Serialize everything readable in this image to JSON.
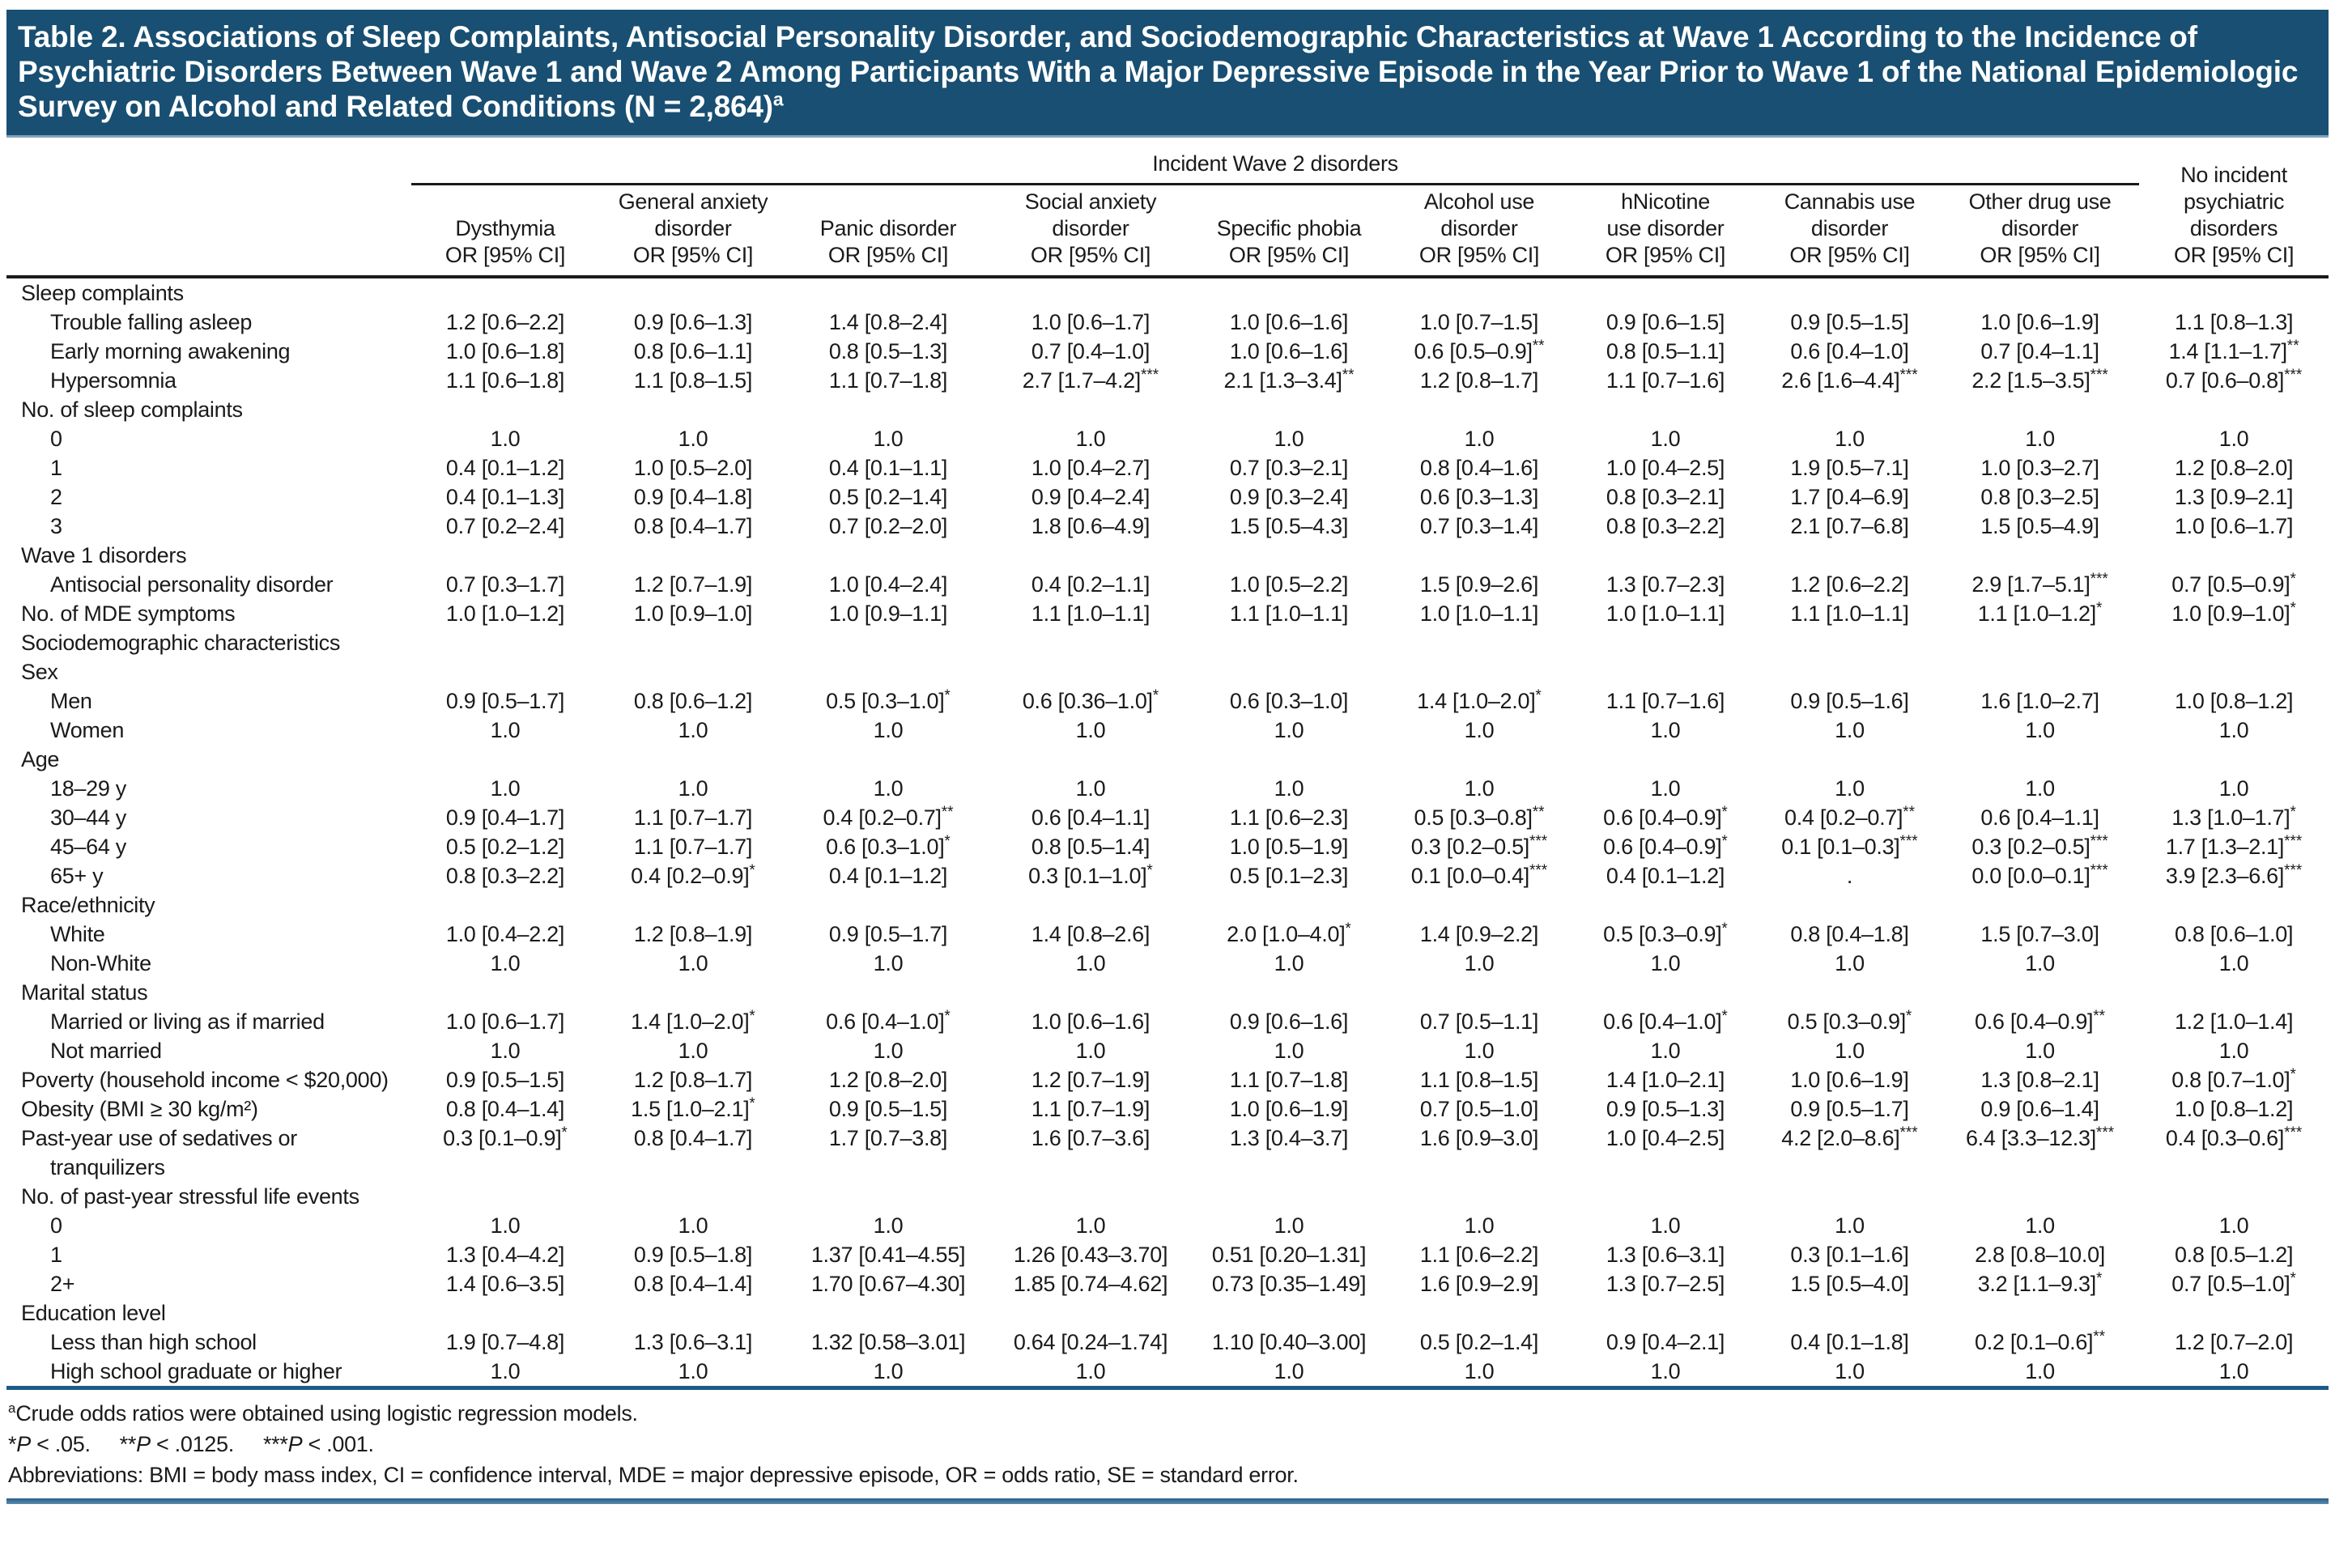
{
  "page": {
    "title": "Table 2. Associations of Sleep Complaints, Antisocial Personality Disorder, and Sociodemographic Characteristics at Wave 1 According to the Incidence of Psychiatric Disorders Between Wave 1 and Wave 2 Among Participants With a Major Depressive Episode in the Year Prior to Wave 1 of the National Epidemiologic Survey on Alcohol and Related Conditions (N = 2,864)",
    "title_footnote_marker": "a",
    "colors": {
      "title_bar": "#184F72",
      "rule_blue": "#1d5b87",
      "text": "#1a1a1a"
    }
  },
  "table": {
    "spanner": "Incident Wave 2 disorders",
    "or_ci_sub": "OR [95% CI]",
    "columns": [
      {
        "key": "dysthymia",
        "name": "Dysthymia"
      },
      {
        "key": "general-anxiety-disorder",
        "name": "General anxiety\ndisorder"
      },
      {
        "key": "panic-disorder",
        "name": "Panic disorder"
      },
      {
        "key": "social-anxiety-disorder",
        "name": "Social anxiety\ndisorder"
      },
      {
        "key": "specific-phobia",
        "name": "Specific phobia"
      },
      {
        "key": "alcohol-use-disorder",
        "name": "Alcohol use\ndisorder"
      },
      {
        "key": "nicotine-use-disorder",
        "name": "hNicotine\nuse disorder"
      },
      {
        "key": "cannabis-use-disorder",
        "name": "Cannabis use\ndisorder"
      },
      {
        "key": "other-drug-use-disorder",
        "name": "Other drug use\ndisorder"
      },
      {
        "key": "no-incident-psychiatric-disorders",
        "name": "No incident\npsychiatric\ndisorders"
      }
    ],
    "rows": [
      {
        "label": "Sleep complaints",
        "indent": 0,
        "values": []
      },
      {
        "label": "Trouble falling asleep",
        "indent": 1,
        "values": [
          "1.2 [0.6–2.2]",
          "0.9 [0.6–1.3]",
          "1.4 [0.8–2.4]",
          "1.0 [0.6–1.7]",
          "1.0 [0.6–1.6]",
          "1.0 [0.7–1.5]",
          "0.9 [0.6–1.5]",
          "0.9 [0.5–1.5]",
          "1.0 [0.6–1.9]",
          "1.1 [0.8–1.3]"
        ]
      },
      {
        "label": "Early morning awakening",
        "indent": 1,
        "values": [
          "1.0 [0.6–1.8]",
          "0.8 [0.6–1.1]",
          "0.8 [0.5–1.3]",
          "0.7 [0.4–1.0]",
          "1.0 [0.6–1.6]",
          "0.6 [0.5–0.9]**",
          "0.8 [0.5–1.1]",
          "0.6 [0.4–1.0]",
          "0.7 [0.4–1.1]",
          "1.4 [1.1–1.7]**"
        ]
      },
      {
        "label": "Hypersomnia",
        "indent": 1,
        "values": [
          "1.1 [0.6–1.8]",
          "1.1 [0.8–1.5]",
          "1.1 [0.7–1.8]",
          "2.7 [1.7–4.2]***",
          "2.1 [1.3–3.4]**",
          "1.2 [0.8–1.7]",
          "1.1 [0.7–1.6]",
          "2.6 [1.6–4.4]***",
          "2.2 [1.5–3.5]***",
          "0.7 [0.6–0.8]***"
        ]
      },
      {
        "label": "No. of sleep complaints",
        "indent": 0,
        "values": []
      },
      {
        "label": "0",
        "indent": 1,
        "values": [
          "1.0",
          "1.0",
          "1.0",
          "1.0",
          "1.0",
          "1.0",
          "1.0",
          "1.0",
          "1.0",
          "1.0"
        ]
      },
      {
        "label": "1",
        "indent": 1,
        "values": [
          "0.4 [0.1–1.2]",
          "1.0 [0.5–2.0]",
          "0.4 [0.1–1.1]",
          "1.0 [0.4–2.7]",
          "0.7 [0.3–2.1]",
          "0.8 [0.4–1.6]",
          "1.0 [0.4–2.5]",
          "1.9 [0.5–7.1]",
          "1.0 [0.3–2.7]",
          "1.2 [0.8–2.0]"
        ]
      },
      {
        "label": "2",
        "indent": 1,
        "values": [
          "0.4 [0.1–1.3]",
          "0.9 [0.4–1.8]",
          "0.5 [0.2–1.4]",
          "0.9 [0.4–2.4]",
          "0.9 [0.3–2.4]",
          "0.6 [0.3–1.3]",
          "0.8 [0.3–2.1]",
          "1.7 [0.4–6.9]",
          "0.8 [0.3–2.5]",
          "1.3 [0.9–2.1]"
        ]
      },
      {
        "label": "3",
        "indent": 1,
        "values": [
          "0.7 [0.2–2.4]",
          "0.8 [0.4–1.7]",
          "0.7 [0.2–2.0]",
          "1.8 [0.6–4.9]",
          "1.5 [0.5–4.3]",
          "0.7 [0.3–1.4]",
          "0.8 [0.3–2.2]",
          "2.1 [0.7–6.8]",
          "1.5 [0.5–4.9]",
          "1.0 [0.6–1.7]"
        ]
      },
      {
        "label": "Wave 1 disorders",
        "indent": 0,
        "values": []
      },
      {
        "label": "Antisocial personality disorder",
        "indent": 1,
        "values": [
          "0.7 [0.3–1.7]",
          "1.2 [0.7–1.9]",
          "1.0 [0.4–2.4]",
          "0.4 [0.2–1.1]",
          "1.0 [0.5–2.2]",
          "1.5 [0.9–2.6]",
          "1.3 [0.7–2.3]",
          "1.2 [0.6–2.2]",
          "2.9 [1.7–5.1]***",
          "0.7 [0.5–0.9]*"
        ]
      },
      {
        "label": "No. of MDE symptoms",
        "indent": 0,
        "values": [
          "1.0 [1.0–1.2]",
          "1.0 [0.9–1.0]",
          "1.0 [0.9–1.1]",
          "1.1 [1.0–1.1]",
          "1.1 [1.0–1.1]",
          "1.0 [1.0–1.1]",
          "1.0 [1.0–1.1]",
          "1.1 [1.0–1.1]",
          "1.1 [1.0–1.2]*",
          "1.0 [0.9–1.0]*"
        ]
      },
      {
        "label": "Sociodemographic characteristics",
        "indent": 0,
        "values": []
      },
      {
        "label": "Sex",
        "indent": 0,
        "values": []
      },
      {
        "label": "Men",
        "indent": 1,
        "values": [
          "0.9 [0.5–1.7]",
          "0.8 [0.6–1.2]",
          "0.5 [0.3–1.0]*",
          "0.6 [0.36–1.0]*",
          "0.6 [0.3–1.0]",
          "1.4 [1.0–2.0]*",
          "1.1 [0.7–1.6]",
          "0.9 [0.5–1.6]",
          "1.6 [1.0–2.7]",
          "1.0 [0.8–1.2]"
        ]
      },
      {
        "label": "Women",
        "indent": 1,
        "values": [
          "1.0",
          "1.0",
          "1.0",
          "1.0",
          "1.0",
          "1.0",
          "1.0",
          "1.0",
          "1.0",
          "1.0"
        ]
      },
      {
        "label": "Age",
        "indent": 0,
        "values": []
      },
      {
        "label": "18–29 y",
        "indent": 1,
        "values": [
          "1.0",
          "1.0",
          "1.0",
          "1.0",
          "1.0",
          "1.0",
          "1.0",
          "1.0",
          "1.0",
          "1.0"
        ]
      },
      {
        "label": "30–44 y",
        "indent": 1,
        "values": [
          "0.9 [0.4–1.7]",
          "1.1 [0.7–1.7]",
          "0.4 [0.2–0.7]**",
          "0.6 [0.4–1.1]",
          "1.1 [0.6–2.3]",
          "0.5 [0.3–0.8]**",
          "0.6 [0.4–0.9]*",
          "0.4 [0.2–0.7]**",
          "0.6 [0.4–1.1]",
          "1.3 [1.0–1.7]*"
        ]
      },
      {
        "label": "45–64 y",
        "indent": 1,
        "values": [
          "0.5 [0.2–1.2]",
          "1.1 [0.7–1.7]",
          "0.6 [0.3–1.0]*",
          "0.8 [0.5–1.4]",
          "1.0 [0.5–1.9]",
          "0.3 [0.2–0.5]***",
          "0.6 [0.4–0.9]*",
          "0.1 [0.1–0.3]***",
          "0.3 [0.2–0.5]***",
          "1.7 [1.3–2.1]***"
        ]
      },
      {
        "label": "65+ y",
        "indent": 1,
        "values": [
          "0.8 [0.3–2.2]",
          "0.4 [0.2–0.9]*",
          "0.4 [0.1–1.2]",
          "0.3 [0.1–1.0]*",
          "0.5 [0.1–2.3]",
          "0.1 [0.0–0.4]***",
          "0.4 [0.1–1.2]",
          ".",
          "0.0 [0.0–0.1]***",
          "3.9 [2.3–6.6]***"
        ]
      },
      {
        "label": "Race/ethnicity",
        "indent": 0,
        "values": []
      },
      {
        "label": "White",
        "indent": 1,
        "values": [
          "1.0 [0.4–2.2]",
          "1.2 [0.8–1.9]",
          "0.9 [0.5–1.7]",
          "1.4 [0.8–2.6]",
          "2.0 [1.0–4.0]*",
          "1.4 [0.9–2.2]",
          "0.5 [0.3–0.9]*",
          "0.8 [0.4–1.8]",
          "1.5 [0.7–3.0]",
          "0.8 [0.6–1.0]"
        ]
      },
      {
        "label": "Non-White",
        "indent": 1,
        "values": [
          "1.0",
          "1.0",
          "1.0",
          "1.0",
          "1.0",
          "1.0",
          "1.0",
          "1.0",
          "1.0",
          "1.0"
        ]
      },
      {
        "label": "Marital status",
        "indent": 0,
        "values": []
      },
      {
        "label": "Married or living as if married",
        "indent": 1,
        "values": [
          "1.0 [0.6–1.7]",
          "1.4 [1.0–2.0]*",
          "0.6 [0.4–1.0]*",
          "1.0 [0.6–1.6]",
          "0.9 [0.6–1.6]",
          "0.7 [0.5–1.1]",
          "0.6 [0.4–1.0]*",
          "0.5 [0.3–0.9]*",
          "0.6 [0.4–0.9]**",
          "1.2 [1.0–1.4]"
        ]
      },
      {
        "label": "Not married",
        "indent": 1,
        "values": [
          "1.0",
          "1.0",
          "1.0",
          "1.0",
          "1.0",
          "1.0",
          "1.0",
          "1.0",
          "1.0",
          "1.0"
        ]
      },
      {
        "label": "Poverty (household income < $20,000)",
        "indent": 0,
        "values": [
          "0.9 [0.5–1.5]",
          "1.2 [0.8–1.7]",
          "1.2 [0.8–2.0]",
          "1.2 [0.7–1.9]",
          "1.1 [0.7–1.8]",
          "1.1 [0.8–1.5]",
          "1.4 [1.0–2.1]",
          "1.0 [0.6–1.9]",
          "1.3 [0.8–2.1]",
          "0.8 [0.7–1.0]*"
        ]
      },
      {
        "label": "Obesity (BMI ≥ 30 kg/m²)",
        "indent": 0,
        "values": [
          "0.8 [0.4–1.4]",
          "1.5 [1.0–2.1]*",
          "0.9 [0.5–1.5]",
          "1.1 [0.7–1.9]",
          "1.0 [0.6–1.9]",
          "0.7 [0.5–1.0]",
          "0.9 [0.5–1.3]",
          "0.9 [0.5–1.7]",
          "0.9 [0.6–1.4]",
          "1.0 [0.8–1.2]"
        ]
      },
      {
        "label": "Past-year use of sedatives or tranquilizers",
        "indent": 0,
        "values": [
          "0.3 [0.1–0.9]*",
          "0.8 [0.4–1.7]",
          "1.7 [0.7–3.8]",
          "1.6 [0.7–3.6]",
          "1.3 [0.4–3.7]",
          "1.6 [0.9–3.0]",
          "1.0 [0.4–2.5]",
          "4.2 [2.0–8.6]***",
          "6.4 [3.3–12.3]***",
          "0.4 [0.3–0.6]***"
        ]
      },
      {
        "label": "No. of past-year stressful life events",
        "indent": 0,
        "values": []
      },
      {
        "label": "0",
        "indent": 1,
        "values": [
          "1.0",
          "1.0",
          "1.0",
          "1.0",
          "1.0",
          "1.0",
          "1.0",
          "1.0",
          "1.0",
          "1.0"
        ]
      },
      {
        "label": "1",
        "indent": 1,
        "values": [
          "1.3 [0.4–4.2]",
          "0.9 [0.5–1.8]",
          "1.37 [0.41–4.55]",
          "1.26 [0.43–3.70]",
          "0.51 [0.20–1.31]",
          "1.1 [0.6–2.2]",
          "1.3 [0.6–3.1]",
          "0.3 [0.1–1.6]",
          "2.8 [0.8–10.0]",
          "0.8 [0.5–1.2]"
        ]
      },
      {
        "label": "2+",
        "indent": 1,
        "values": [
          "1.4 [0.6–3.5]",
          "0.8 [0.4–1.4]",
          "1.70 [0.67–4.30]",
          "1.85 [0.74–4.62]",
          "0.73 [0.35–1.49]",
          "1.6 [0.9–2.9]",
          "1.3 [0.7–2.5]",
          "1.5 [0.5–4.0]",
          "3.2 [1.1–9.3]*",
          "0.7 [0.5–1.0]*"
        ]
      },
      {
        "label": "Education level",
        "indent": 0,
        "values": []
      },
      {
        "label": "Less than high school",
        "indent": 1,
        "values": [
          "1.9 [0.7–4.8]",
          "1.3 [0.6–3.1]",
          "1.32 [0.58–3.01]",
          "0.64 [0.24–1.74]",
          "1.10 [0.40–3.00]",
          "0.5 [0.2–1.4]",
          "0.9 [0.4–2.1]",
          "0.4 [0.1–1.8]",
          "0.2 [0.1–0.6]**",
          "1.2 [0.7–2.0]"
        ]
      },
      {
        "label": "High school graduate or higher",
        "indent": 1,
        "values": [
          "1.0",
          "1.0",
          "1.0",
          "1.0",
          "1.0",
          "1.0",
          "1.0",
          "1.0",
          "1.0",
          "1.0"
        ]
      }
    ]
  },
  "footnotes": {
    "crude_marker": "a",
    "crude": "Crude odds ratios were obtained using logistic regression models.",
    "significance": [
      {
        "stars": "*",
        "p_var": "P",
        "rest": " < .05."
      },
      {
        "stars": "**",
        "p_var": "P",
        "rest": " < .0125."
      },
      {
        "stars": "***",
        "p_var": "P",
        "rest": " < .001."
      }
    ],
    "abbreviations": "Abbreviations: BMI = body mass index, CI = confidence interval, MDE = major depressive episode, OR = odds ratio, SE = standard error."
  }
}
